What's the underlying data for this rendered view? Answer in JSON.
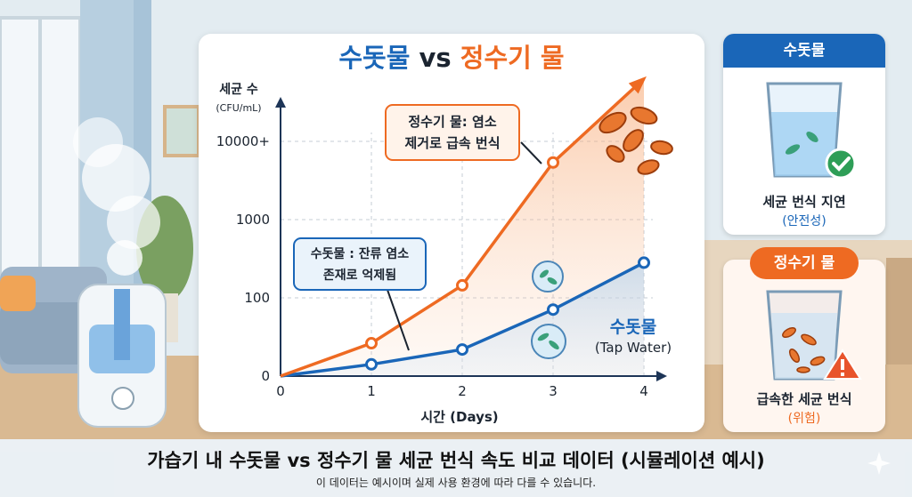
{
  "colors": {
    "tap": "#1a66b8",
    "purified": "#ee6a22",
    "axis": "#1d3557",
    "grid": "#c5ccd6"
  },
  "chart_data": {
    "type": "line",
    "title_part1": "수돗물",
    "title_vs": "vs",
    "title_part2": "정수기 물",
    "ylabel": "세균 수",
    "yunit": "(CFU/mL)",
    "xlabel": "시간 (Days)",
    "yscale": "log",
    "x_ticks": [
      "0",
      "1",
      "2",
      "3",
      "4"
    ],
    "y_ticks": [
      {
        "label": "0",
        "level": 0
      },
      {
        "label": "100",
        "level": 1
      },
      {
        "label": "1000",
        "level": 2
      },
      {
        "label": "10000+",
        "level": 3
      }
    ],
    "series": [
      {
        "name": "정수기 물",
        "points": [
          [
            0,
            0
          ],
          [
            1,
            0.42
          ],
          [
            2,
            1.16
          ],
          [
            3,
            2.73
          ]
        ],
        "arrow_to": [
          4,
          3.8
        ]
      },
      {
        "name": "수돗물 (Tap Water)",
        "points": [
          [
            0,
            0
          ],
          [
            1,
            0.15
          ],
          [
            2,
            0.34
          ],
          [
            3,
            0.85
          ],
          [
            4,
            1.45
          ]
        ]
      }
    ],
    "annotations": [
      {
        "line1": "정수기 물: 염소",
        "line2": "제거로 급속 번식"
      },
      {
        "line1": "수돗물 : 잔류 염소",
        "line2": "존재로 억제됨"
      }
    ],
    "series_label": {
      "line1": "수돗물",
      "line2": "(Tap Water)"
    }
  },
  "cards": {
    "tap": {
      "header": "수돗물",
      "line1": "세균 번식 지연",
      "line2": "(안전성)"
    },
    "purified": {
      "header": "정수기 물",
      "line1": "급속한 세균 번식",
      "line2": "(위험)"
    }
  },
  "caption": {
    "title": "가습기 내 수돗물 vs 정수기 물 세균 번식 속도 비교 데이터 (시뮬레이션 예시)",
    "subtitle": "이 데이터는 예시이며 실제 사용 환경에 따라 다를 수 있습니다."
  }
}
